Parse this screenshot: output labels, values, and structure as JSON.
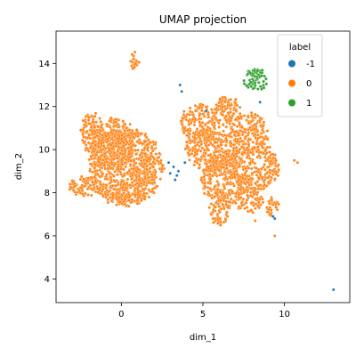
{
  "chart_data": {
    "type": "scatter",
    "title": "UMAP projection",
    "xlabel": "dim_1",
    "ylabel": "dim_2",
    "xlim": [
      -4.0,
      14.0
    ],
    "ylim": [
      2.9,
      15.5
    ],
    "x_ticks": [
      0,
      5,
      10
    ],
    "y_ticks": [
      4,
      6,
      8,
      10,
      12,
      14
    ],
    "grid": false,
    "legend": {
      "title": "label",
      "position": "top-right",
      "entries": [
        {
          "label": "-1",
          "color": "#1f77b4"
        },
        {
          "label": "0",
          "color": "#ff7f0e"
        },
        {
          "label": "1",
          "color": "#2ca02c"
        }
      ]
    },
    "series": [
      {
        "label": "0",
        "color": "#ff7f0e",
        "regions": [
          {
            "cx": 0.3,
            "cy": 9.2,
            "rx": 2.3,
            "ry": 1.8
          },
          {
            "cx": -0.5,
            "cy": 10.3,
            "rx": 1.4,
            "ry": 1.2
          },
          {
            "cx": -1.8,
            "cy": 10.8,
            "rx": 0.7,
            "ry": 0.9
          },
          {
            "cx": -2.2,
            "cy": 8.3,
            "rx": 1.1,
            "ry": 0.45
          },
          {
            "cx": 0.2,
            "cy": 8.0,
            "rx": 1.0,
            "ry": 0.5
          },
          {
            "cx": 1.3,
            "cy": 9.0,
            "rx": 0.8,
            "ry": 0.8
          },
          {
            "cx": 0.8,
            "cy": 14.2,
            "rx": 0.28,
            "ry": 0.5
          },
          {
            "cx": 4.8,
            "cy": 11.2,
            "rx": 1.2,
            "ry": 0.9
          },
          {
            "cx": 5.5,
            "cy": 10.0,
            "rx": 1.6,
            "ry": 1.0
          },
          {
            "cx": 6.5,
            "cy": 11.8,
            "rx": 0.8,
            "ry": 0.7
          },
          {
            "cx": 7.8,
            "cy": 10.7,
            "rx": 1.2,
            "ry": 1.0
          },
          {
            "cx": 8.2,
            "cy": 9.2,
            "rx": 1.5,
            "ry": 1.1
          },
          {
            "cx": 6.3,
            "cy": 8.7,
            "rx": 1.4,
            "ry": 1.3
          },
          {
            "cx": 6.0,
            "cy": 7.3,
            "rx": 0.6,
            "ry": 0.8
          },
          {
            "cx": 7.8,
            "cy": 7.7,
            "rx": 0.9,
            "ry": 0.6
          },
          {
            "cx": 9.2,
            "cy": 7.4,
            "rx": 0.4,
            "ry": 0.5
          }
        ],
        "points": [
          [
            10.6,
            9.5
          ],
          [
            10.8,
            9.4
          ],
          [
            9.4,
            6.0
          ],
          [
            8.2,
            6.7
          ],
          [
            9.6,
            8.8
          ]
        ]
      },
      {
        "label": "1",
        "color": "#2ca02c",
        "regions": [
          {
            "cx": 8.2,
            "cy": 13.2,
            "rx": 0.75,
            "ry": 0.55
          }
        ],
        "points": []
      },
      {
        "label": "-1",
        "color": "#1f77b4",
        "regions": [],
        "points": [
          [
            3.6,
            13.0
          ],
          [
            3.7,
            12.7
          ],
          [
            3.4,
            8.8
          ],
          [
            3.3,
            8.6
          ],
          [
            3.2,
            9.2
          ],
          [
            2.9,
            9.4
          ],
          [
            3.0,
            8.9
          ],
          [
            3.5,
            9.0
          ],
          [
            8.5,
            12.2
          ],
          [
            5.2,
            11.8
          ],
          [
            3.9,
            9.4
          ],
          [
            9.4,
            6.8
          ],
          [
            9.3,
            6.9
          ],
          [
            13.0,
            3.5
          ]
        ]
      }
    ]
  }
}
